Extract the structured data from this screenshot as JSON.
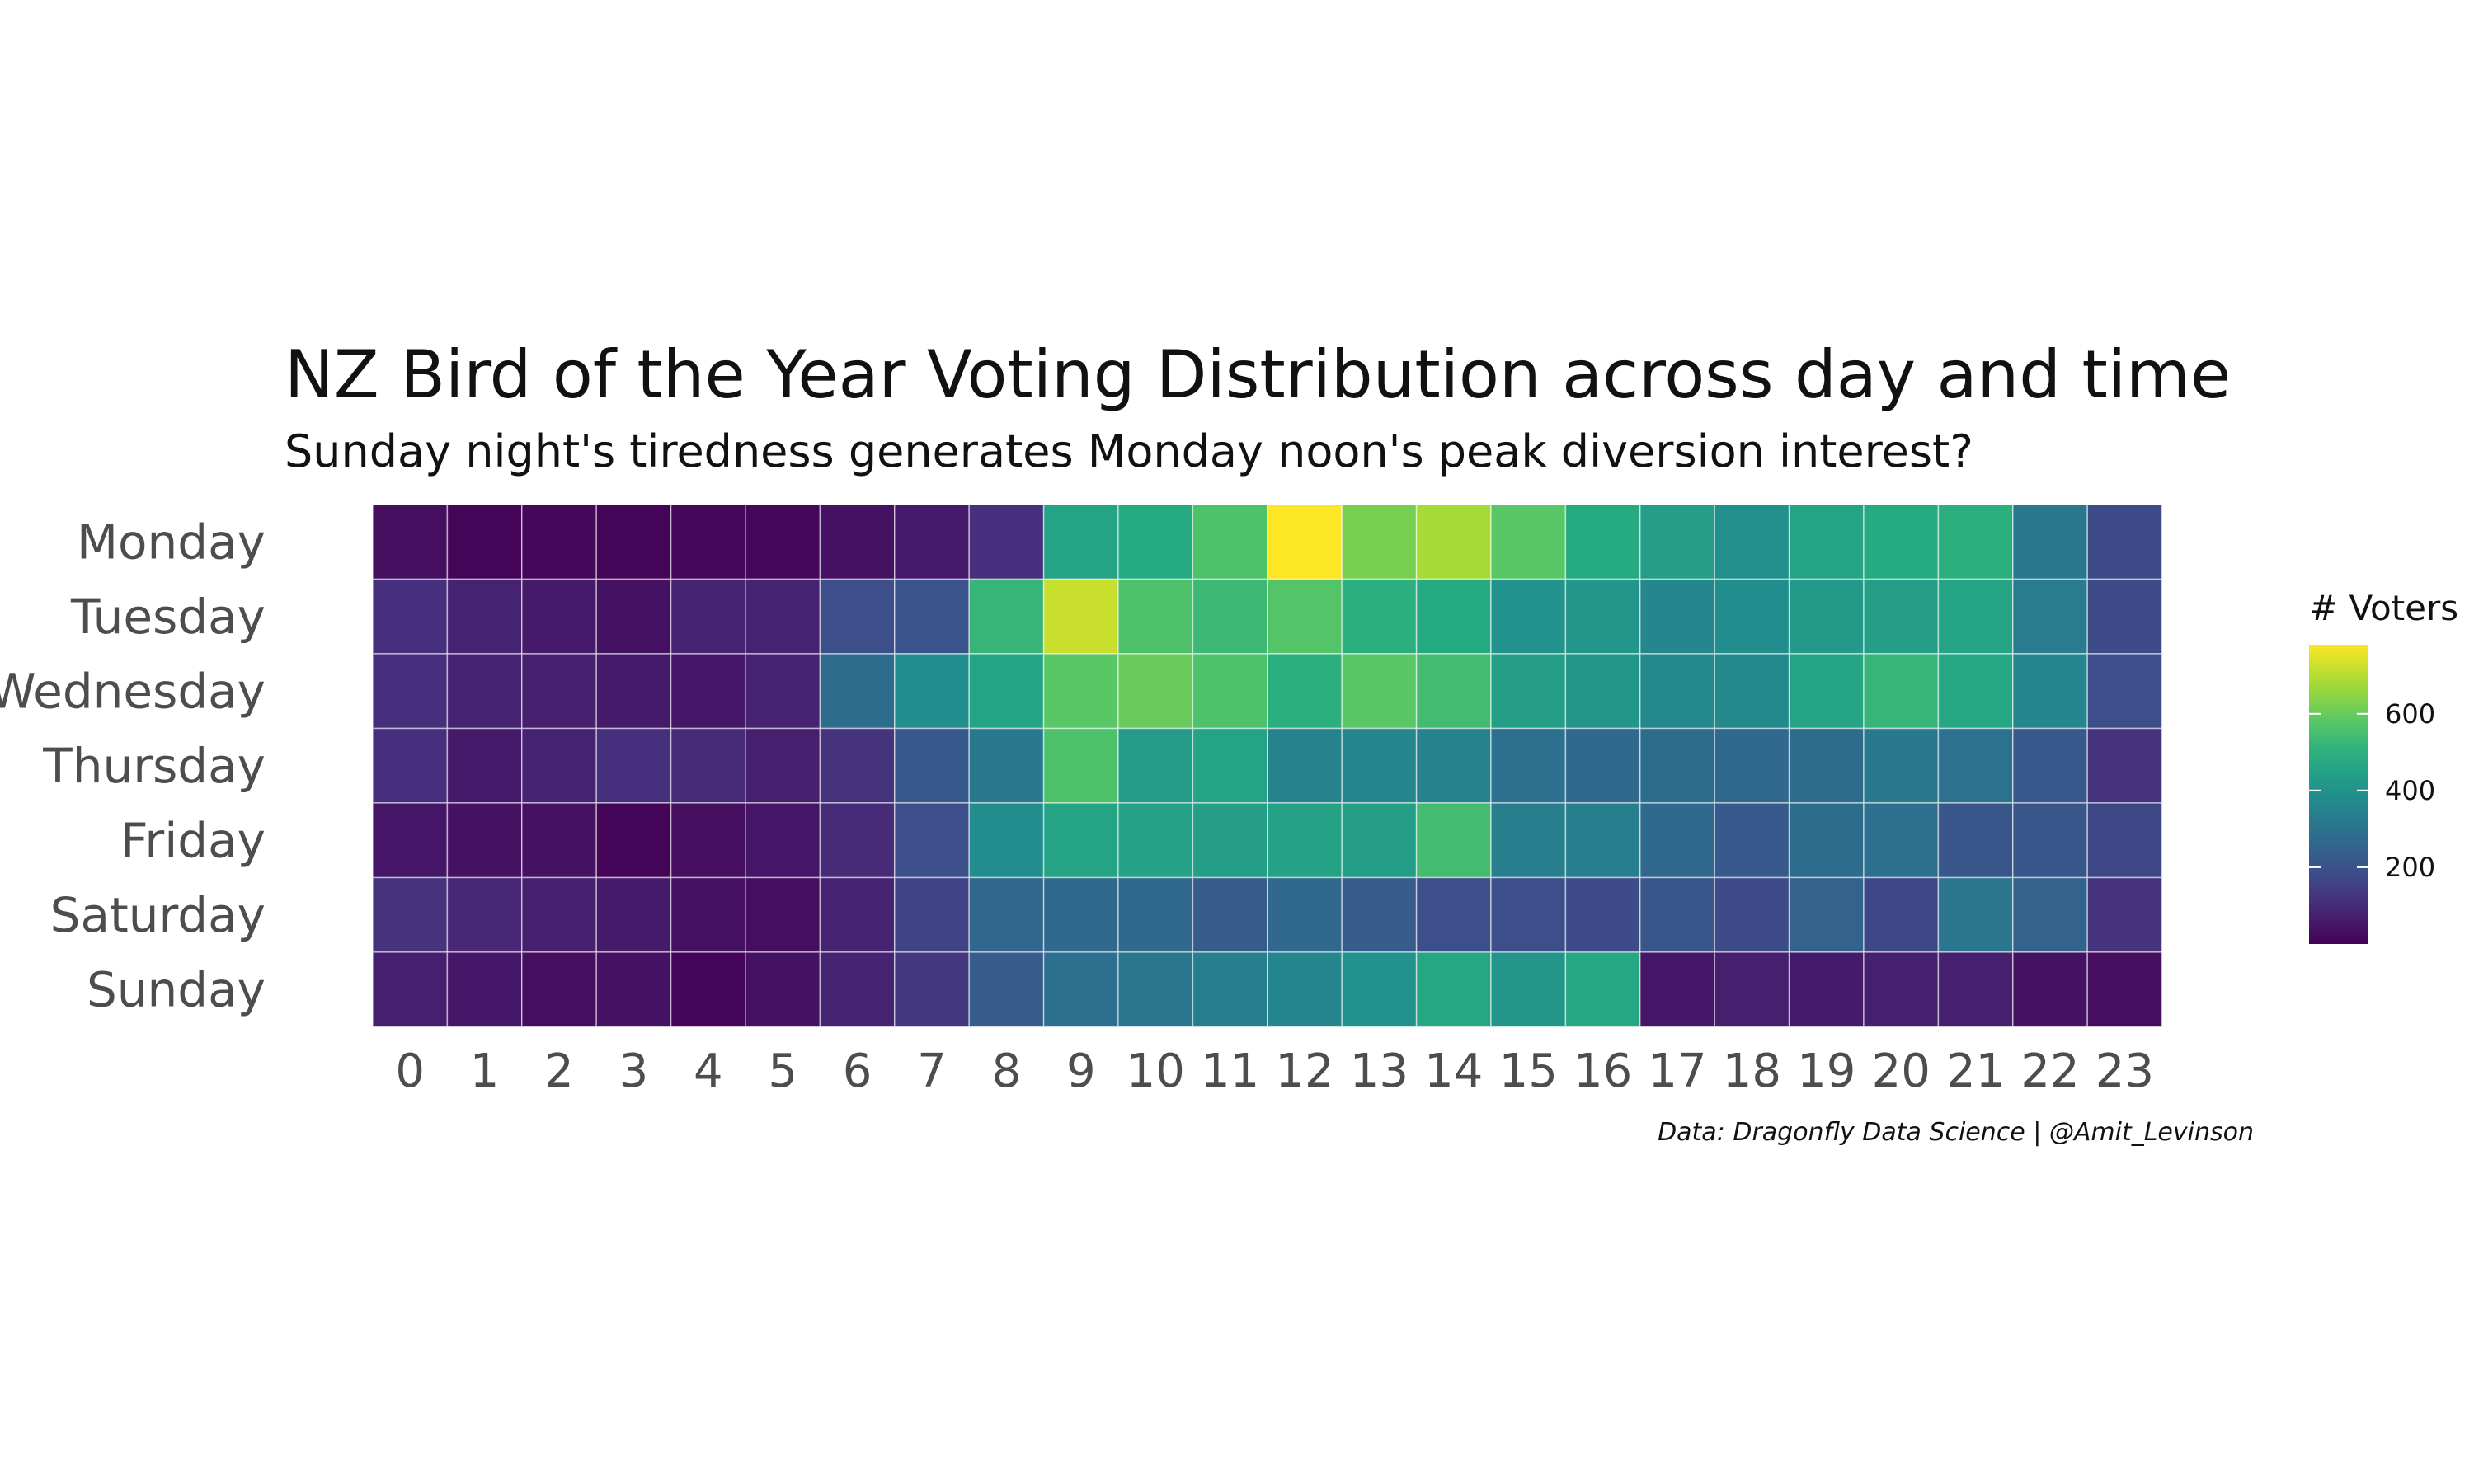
{
  "chart_data": {
    "type": "heatmap",
    "title": "NZ Bird of the Year Voting Distribution across day and time",
    "subtitle": "Sunday night's tiredness generates Monday noon's peak diversion interest?",
    "caption": "Data: Dragonfly Data Science | @Amit_Levinson",
    "x_categories": [
      "0",
      "1",
      "2",
      "3",
      "4",
      "5",
      "6",
      "7",
      "8",
      "9",
      "10",
      "11",
      "12",
      "13",
      "14",
      "15",
      "16",
      "17",
      "18",
      "19",
      "20",
      "21",
      "22",
      "23"
    ],
    "y_categories": [
      "Monday",
      "Tuesday",
      "Wednesday",
      "Thursday",
      "Friday",
      "Saturday",
      "Sunday"
    ],
    "values": [
      [
        30,
        10,
        15,
        10,
        15,
        15,
        40,
        60,
        110,
        460,
        480,
        560,
        780,
        620,
        680,
        580,
        480,
        440,
        390,
        460,
        480,
        500,
        320,
        180
      ],
      [
        110,
        80,
        60,
        40,
        80,
        80,
        190,
        200,
        520,
        720,
        560,
        530,
        570,
        500,
        480,
        400,
        410,
        360,
        380,
        420,
        440,
        460,
        330,
        180
      ],
      [
        110,
        80,
        70,
        60,
        50,
        80,
        280,
        380,
        460,
        580,
        600,
        560,
        500,
        580,
        540,
        440,
        410,
        370,
        370,
        460,
        520,
        470,
        360,
        190
      ],
      [
        110,
        60,
        80,
        110,
        100,
        70,
        120,
        220,
        320,
        560,
        430,
        460,
        350,
        360,
        350,
        290,
        270,
        280,
        270,
        280,
        320,
        300,
        220,
        120
      ],
      [
        50,
        40,
        40,
        10,
        30,
        50,
        100,
        190,
        380,
        460,
        450,
        440,
        450,
        440,
        540,
        340,
        340,
        270,
        220,
        280,
        290,
        210,
        210,
        170
      ],
      [
        120,
        90,
        70,
        60,
        40,
        30,
        80,
        160,
        260,
        270,
        270,
        230,
        270,
        230,
        190,
        190,
        180,
        210,
        180,
        250,
        170,
        310,
        250,
        120
      ],
      [
        70,
        50,
        30,
        40,
        10,
        40,
        80,
        130,
        230,
        290,
        310,
        340,
        360,
        400,
        470,
        410,
        470,
        50,
        70,
        60,
        70,
        70,
        40,
        30
      ]
    ],
    "legend": {
      "title": "# Voters",
      "ticks": [
        200,
        400,
        600
      ],
      "range": [
        0,
        780
      ],
      "position": "right"
    },
    "colorscale": "viridis",
    "grid": false
  }
}
